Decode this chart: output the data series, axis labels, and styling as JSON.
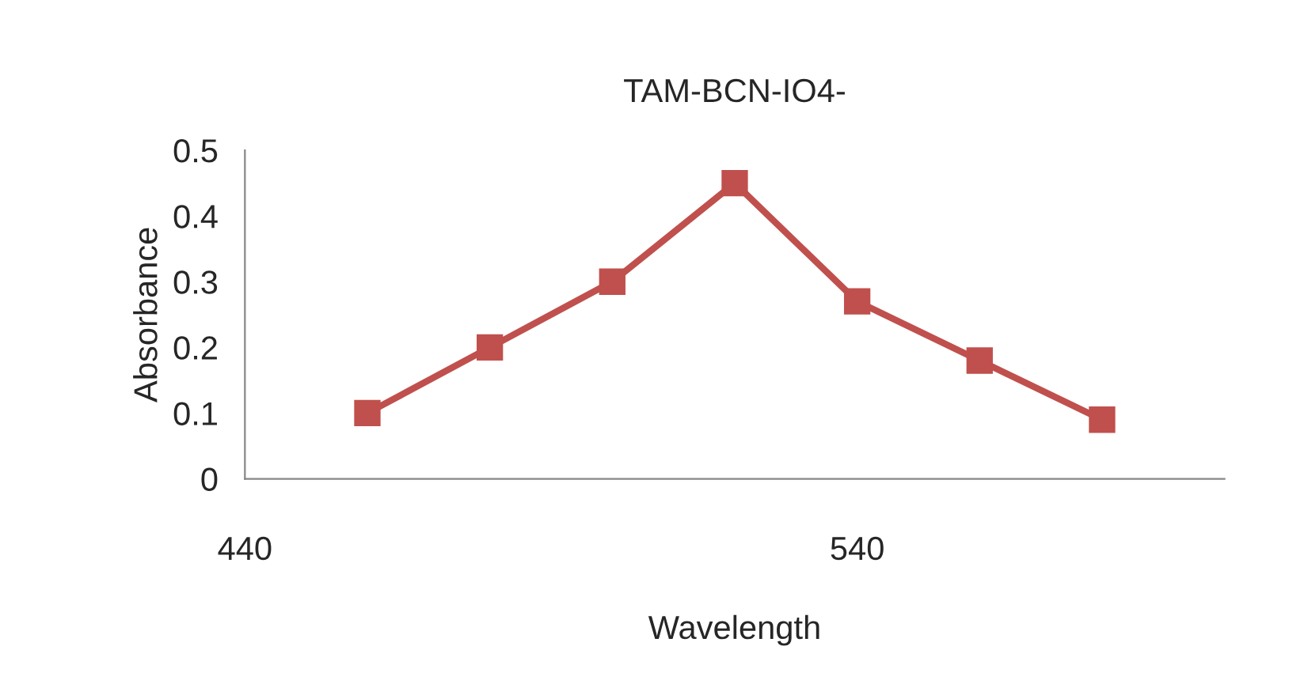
{
  "chart_data": {
    "type": "line",
    "title": "TAM-BCN-IO4-",
    "xlabel": "Wavelength",
    "ylabel": "Absorbance",
    "x": [
      460,
      480,
      500,
      520,
      540,
      560,
      580
    ],
    "series": [
      {
        "color": "#c0504d",
        "values": [
          0.1,
          0.2,
          0.3,
          0.45,
          0.27,
          0.18,
          0.09
        ]
      }
    ],
    "xlim": [
      440,
      600
    ],
    "xticks": [
      440,
      540
    ],
    "ylim": [
      0,
      0.5
    ],
    "yticks": [
      {
        "value": 0,
        "label": "0"
      },
      0.1,
      0.2,
      0.3,
      0.4,
      0.5
    ],
    "marker": "square",
    "line_style": "solid",
    "grid": false,
    "legend": false
  }
}
